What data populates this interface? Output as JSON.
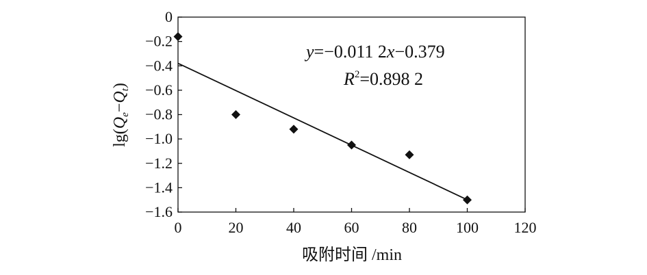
{
  "chart_data": {
    "type": "scatter",
    "xlabel": "吸附时间 /min",
    "ylabel": {
      "prefix": "lg(",
      "q1": "Q",
      "sub1": "e",
      "minus": "−",
      "q2": "Q",
      "sub2": "t",
      "suffix": ")"
    },
    "xlim": [
      0,
      120
    ],
    "ylim": [
      -1.6,
      0
    ],
    "x_ticks": [
      0,
      20,
      40,
      60,
      80,
      100,
      120
    ],
    "x_tick_labels": [
      "0",
      "20",
      "40",
      "60",
      "80",
      "100",
      "120"
    ],
    "y_ticks": [
      0,
      -0.2,
      -0.4,
      -0.6,
      -0.8,
      -1.0,
      -1.2,
      -1.4,
      -1.6
    ],
    "y_tick_labels": [
      "0",
      "−0.2",
      "−0.4",
      "−0.6",
      "−0.8",
      "−1.0",
      "−1.2",
      "−1.4",
      "−1.6"
    ],
    "grid": false,
    "marker": "diamond",
    "points": [
      {
        "x": 0,
        "y": -0.16
      },
      {
        "x": 20,
        "y": -0.8
      },
      {
        "x": 40,
        "y": -0.92
      },
      {
        "x": 60,
        "y": -1.05
      },
      {
        "x": 80,
        "y": -1.13
      },
      {
        "x": 100,
        "y": -1.5
      }
    ],
    "fit_line": {
      "slope": -0.0112,
      "intercept": -0.379,
      "x_range": [
        0,
        100
      ]
    },
    "annotation": {
      "line1": {
        "y": "y",
        "rest": "=−0.011 2",
        "x": "x",
        "tail": "−0.379"
      },
      "line2": {
        "R": "R",
        "sup": "2",
        "rest": "=0.898 2"
      }
    },
    "colors": {
      "marker": "#111111",
      "line": "#111111",
      "axis": "#111111"
    }
  }
}
